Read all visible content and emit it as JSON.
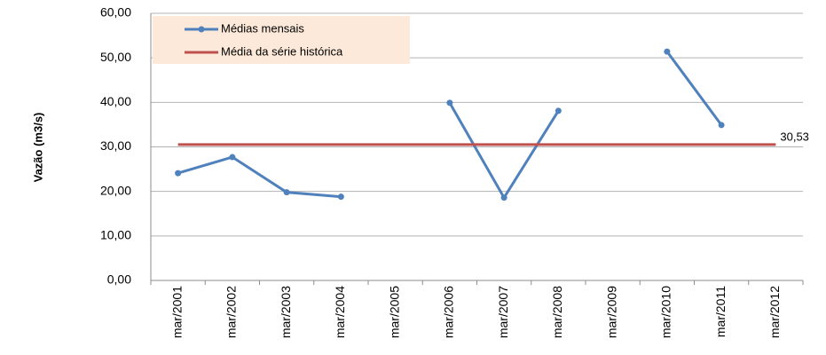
{
  "chart_data": {
    "type": "line",
    "y_label": "Vazão (m3/s)",
    "categories": [
      "mar/2001",
      "mar/2002",
      "mar/2003",
      "mar/2004",
      "mar/2005",
      "mar/2006",
      "mar/2007",
      "mar/2008",
      "mar/2009",
      "mar/2010",
      "mar/2011",
      "mar/2012"
    ],
    "series": [
      {
        "name": "Médias mensais",
        "color": "#4f81bd",
        "marker": true,
        "values": [
          24.1,
          27.7,
          19.8,
          18.8,
          null,
          39.9,
          18.6,
          38.1,
          null,
          51.4,
          34.9,
          null
        ]
      },
      {
        "name": "Média da série histórica",
        "color": "#c0504d",
        "marker": false,
        "values": [
          30.53,
          30.53,
          30.53,
          30.53,
          30.53,
          30.53,
          30.53,
          30.53,
          30.53,
          30.53,
          30.53,
          30.53
        ],
        "value_labels": [
          null,
          null,
          null,
          null,
          null,
          null,
          null,
          null,
          null,
          null,
          null,
          "30,53"
        ]
      }
    ],
    "ylim": [
      0,
      60
    ],
    "yticks": [
      {
        "value": 0,
        "label": "0,00"
      },
      {
        "value": 10,
        "label": "10,00"
      },
      {
        "value": 20,
        "label": "20,00"
      },
      {
        "value": 30,
        "label": "30,00"
      },
      {
        "value": 40,
        "label": "40,00"
      },
      {
        "value": 50,
        "label": "50,00"
      },
      {
        "value": 60,
        "label": "60,00"
      }
    ],
    "grid": true,
    "legend": "upper left"
  }
}
